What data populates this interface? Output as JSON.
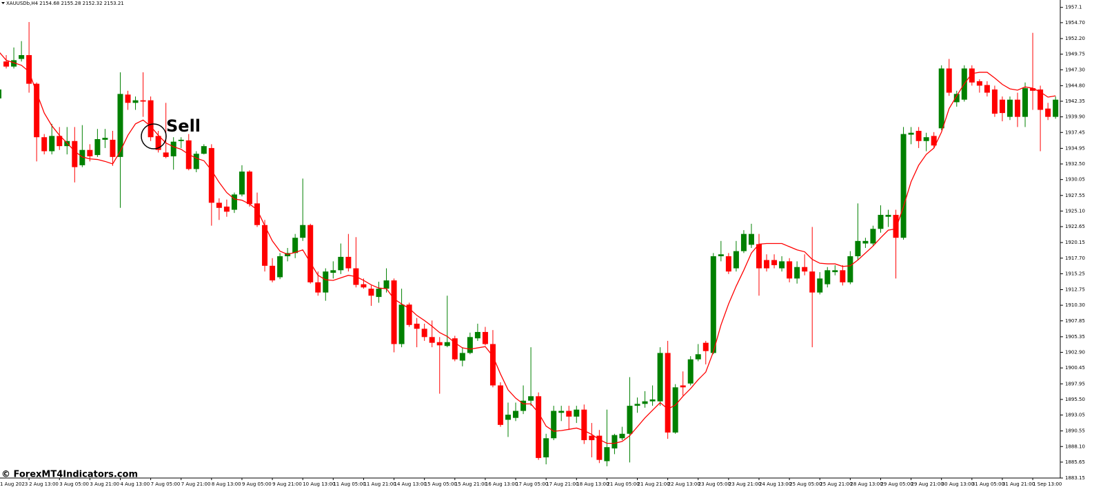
{
  "chart_data": {
    "type": "candlestick",
    "header": "XAUUSDb,H4  2154.68 2155.28 2152.32 2153.21",
    "annotation": "Sell",
    "watermark": "© ForexMT4Indicators.com",
    "up_color": "#008000",
    "down_color": "#ff0000",
    "categories": [
      "1 Aug 2023",
      null,
      null,
      null,
      "2 Aug 13:00",
      null,
      null,
      null,
      "3 Aug 05:00",
      null,
      null,
      null,
      "3 Aug 21:00",
      null,
      null,
      null,
      "4 Aug 13:00",
      null,
      null,
      null,
      "7 Aug 05:00",
      null,
      null,
      null,
      "7 Aug 21:00",
      null,
      null,
      null,
      "8 Aug 13:00",
      null,
      null,
      null,
      "9 Aug 05:00",
      null,
      null,
      null,
      "9 Aug 21:00",
      null,
      null,
      null,
      "10 Aug 13:00",
      null,
      null,
      null,
      "11 Aug 05:00",
      null,
      null,
      null,
      "11 Aug 21:00",
      null,
      null,
      null,
      "14 Aug 13:00",
      null,
      null,
      null,
      "15 Aug 05:00",
      null,
      null,
      null,
      "15 Aug 21:00",
      null,
      null,
      null,
      "16 Aug 13:00",
      null,
      null,
      null,
      "17 Aug 05:00",
      null,
      null,
      null,
      "17 Aug 21:00",
      null,
      null,
      null,
      "18 Aug 13:00",
      null,
      null,
      null,
      "21 Aug 05:00",
      null,
      null,
      null,
      "21 Aug 21:00",
      null,
      null,
      null,
      "22 Aug 13:00",
      null,
      null,
      null,
      "23 Aug 05:00",
      null,
      null,
      null,
      "23 Aug 21:00",
      null,
      null,
      null,
      "24 Aug 13:00",
      null,
      null,
      null,
      "25 Aug 05:00",
      null,
      null,
      null,
      "25 Aug 21:00",
      null,
      null,
      null,
      "28 Aug 13:00",
      null,
      null,
      null,
      "29 Aug 05:00",
      null,
      null,
      null,
      "29 Aug 21:00",
      null,
      null,
      null,
      "30 Aug 13:00",
      null,
      null,
      null,
      "31 Aug 05:00",
      null,
      null,
      null,
      "31 Aug 21:00",
      null,
      null,
      null,
      "1 Sep 13:00",
      null,
      null,
      null
    ],
    "open": [
      1942.8,
      1948.6,
      1947.8,
      1949.0,
      1949.6,
      1945.1,
      1936.7,
      1934.5,
      1936.9,
      1935.3,
      1936.1,
      1932.3,
      1934.7,
      1933.9,
      1936.3,
      1936.3,
      1933.6,
      1943.4,
      1942.1,
      1942.5,
      1942.5,
      1936.9,
      1934.3,
      1933.7,
      1936.1,
      1936.2,
      1931.7,
      1934.1,
      1935.0,
      1926.4,
      1925.8,
      1925.3,
      1927.7,
      1931.3,
      1926.3,
      1922.9,
      1916.5,
      1914.7,
      1918.0,
      1918.5,
      1920.9,
      1922.9,
      1913.9,
      1912.3,
      1915.4,
      1915.8,
      1917.9,
      1916.1,
      1913.6,
      1912.9,
      1911.6,
      1912.9,
      1914.2,
      1904.2,
      1910.4,
      1907.4,
      1906.6,
      1905.3,
      1904.5,
      1903.9,
      1905.1,
      1901.6,
      1902.8,
      1905.1,
      1906.1,
      1904.2,
      1897.7,
      1892.3,
      1892.6,
      1893.7,
      1895.3,
      1896.0,
      1886.4,
      1889.4,
      1893.4,
      1893.7,
      1892.8,
      1893.9,
      1889.8,
      1889.8,
      1885.8,
      1887.8,
      1889.4,
      1890.1,
      1894.5,
      1894.8,
      1895.2,
      1895.2,
      1902.8,
      1890.3,
      1897.7,
      1898.0,
      1901.8,
      1904.4,
      1902.8,
      1918.0,
      1918.0,
      1916.1,
      1918.8,
      1919.8,
      1919.9,
      1917.4,
      1917.4,
      1916.1,
      1917.2,
      1914.5,
      1916.3,
      1915.6,
      1912.3,
      1913.6,
      1915.5,
      1915.8,
      1913.9,
      1918.0,
      1920.0,
      1920.0,
      1922.3,
      1924.2,
      1924.5,
      1920.9,
      1937.1,
      1937.7,
      1936.1,
      1936.9,
      1938.1,
      1947.5,
      1942.2,
      1942.6,
      1947.5,
      1945.5,
      1944.9,
      1944.2,
      1942.6,
      1939.9,
      1942.6,
      1939.9,
      1944.4,
      1944.2,
      1941.2,
      1939.9
    ],
    "high": [
      1944.4,
      1949.6,
      1950.8,
      1951.8,
      1954.8,
      1945.3,
      1937.2,
      1938.8,
      1938.3,
      1938.3,
      1938.3,
      1938.6,
      1935.6,
      1938.0,
      1938.0,
      1937.7,
      1946.9,
      1944.0,
      1943.1,
      1946.9,
      1943.1,
      1937.7,
      1942.1,
      1936.7,
      1936.7,
      1937.2,
      1934.5,
      1935.6,
      1935.6,
      1927.1,
      1926.9,
      1928.0,
      1932.3,
      1931.5,
      1928.0,
      1923.7,
      1917.7,
      1918.5,
      1919.3,
      1921.5,
      1930.2,
      1923.1,
      1915.6,
      1916.1,
      1917.2,
      1920.0,
      1921.5,
      1921.0,
      1914.5,
      1913.4,
      1914.0,
      1916.1,
      1914.5,
      1912.9,
      1910.7,
      1908.3,
      1907.4,
      1907.9,
      1905.3,
      1911.8,
      1905.5,
      1903.7,
      1906.0,
      1907.4,
      1906.9,
      1906.4,
      1898.2,
      1895.0,
      1895.0,
      1897.7,
      1903.7,
      1896.6,
      1890.1,
      1894.5,
      1894.5,
      1894.5,
      1894.5,
      1894.7,
      1891.8,
      1890.7,
      1893.9,
      1890.1,
      1891.2,
      1899.0,
      1895.8,
      1896.8,
      1897.7,
      1903.7,
      1904.7,
      1897.9,
      1899.9,
      1902.3,
      1904.2,
      1904.7,
      1918.5,
      1920.4,
      1918.5,
      1920.4,
      1922.1,
      1923.1,
      1921.5,
      1918.3,
      1918.3,
      1918.0,
      1917.7,
      1917.2,
      1918.3,
      1922.6,
      1915.5,
      1916.3,
      1916.6,
      1916.6,
      1918.8,
      1926.3,
      1920.9,
      1922.8,
      1926.0,
      1925.3,
      1925.3,
      1938.3,
      1938.3,
      1938.3,
      1937.4,
      1937.5,
      1948.0,
      1949.0,
      1944.0,
      1948.0,
      1948.0,
      1945.8,
      1945.5,
      1944.8,
      1943.1,
      1943.1,
      1943.7,
      1945.3,
      1953.1,
      1944.8,
      1942.1,
      1943.1
    ],
    "low": [
      1942.6,
      1947.5,
      1947.5,
      1948.6,
      1943.7,
      1932.9,
      1934.0,
      1934.0,
      1934.7,
      1934.0,
      1929.6,
      1932.0,
      1932.9,
      1933.6,
      1935.0,
      1932.2,
      1925.6,
      1941.0,
      1941.0,
      1939.9,
      1936.1,
      1934.3,
      1933.4,
      1931.6,
      1935.0,
      1931.5,
      1931.2,
      1934.0,
      1922.8,
      1923.7,
      1924.2,
      1924.8,
      1927.4,
      1925.8,
      1922.6,
      1915.6,
      1913.9,
      1914.4,
      1917.2,
      1917.7,
      1920.4,
      1913.7,
      1911.8,
      1911.0,
      1914.5,
      1915.2,
      1915.6,
      1913.1,
      1912.9,
      1910.2,
      1910.7,
      1912.3,
      1902.9,
      1903.7,
      1906.9,
      1903.7,
      1904.7,
      1903.7,
      1896.4,
      1903.7,
      1901.5,
      1900.7,
      1902.6,
      1904.7,
      1904.0,
      1897.4,
      1891.2,
      1889.6,
      1892.1,
      1893.2,
      1894.5,
      1886.0,
      1885.3,
      1889.1,
      1892.1,
      1890.7,
      1891.8,
      1888.5,
      1886.4,
      1885.5,
      1885.0,
      1886.9,
      1889.1,
      1885.6,
      1893.4,
      1894.2,
      1894.5,
      1894.5,
      1889.3,
      1890.1,
      1896.1,
      1897.7,
      1901.5,
      1901.0,
      1902.6,
      1917.2,
      1915.2,
      1915.6,
      1918.5,
      1919.3,
      1911.8,
      1915.6,
      1916.1,
      1915.6,
      1913.9,
      1913.7,
      1915.0,
      1903.7,
      1912.0,
      1913.1,
      1915.0,
      1913.4,
      1913.6,
      1917.4,
      1919.3,
      1919.7,
      1921.7,
      1922.6,
      1914.5,
      1920.6,
      1935.6,
      1935.0,
      1934.5,
      1935.0,
      1937.8,
      1943.2,
      1941.5,
      1942.3,
      1944.8,
      1943.7,
      1943.1,
      1939.9,
      1939.2,
      1939.4,
      1938.3,
      1938.3,
      1941.0,
      1934.5,
      1939.4,
      1939.6
    ],
    "close": [
      1944.2,
      1947.8,
      1948.8,
      1949.6,
      1945.1,
      1936.7,
      1934.5,
      1936.9,
      1935.3,
      1936.1,
      1932.0,
      1934.7,
      1933.7,
      1936.4,
      1936.6,
      1933.6,
      1943.5,
      1942.1,
      1942.5,
      1942.3,
      1936.7,
      1934.7,
      1933.6,
      1936.0,
      1936.3,
      1931.7,
      1934.1,
      1935.3,
      1926.4,
      1925.6,
      1925.0,
      1927.7,
      1931.3,
      1926.2,
      1922.9,
      1916.5,
      1914.2,
      1918.0,
      1918.5,
      1920.9,
      1922.9,
      1913.9,
      1912.3,
      1915.6,
      1915.8,
      1917.9,
      1916.1,
      1913.5,
      1913.1,
      1911.8,
      1912.9,
      1914.2,
      1904.2,
      1910.4,
      1907.2,
      1906.6,
      1905.3,
      1904.4,
      1904.0,
      1904.5,
      1901.8,
      1902.8,
      1905.3,
      1906.1,
      1904.2,
      1897.7,
      1891.5,
      1893.1,
      1893.7,
      1895.3,
      1896.0,
      1886.3,
      1889.4,
      1893.7,
      1893.7,
      1892.8,
      1893.9,
      1889.1,
      1889.1,
      1886.0,
      1888.0,
      1889.9,
      1890.1,
      1894.5,
      1894.8,
      1895.2,
      1895.5,
      1902.8,
      1890.3,
      1897.4,
      1897.4,
      1901.8,
      1902.6,
      1903.1,
      1918.0,
      1918.3,
      1915.6,
      1918.8,
      1921.5,
      1921.5,
      1916.1,
      1916.1,
      1916.6,
      1917.2,
      1914.5,
      1916.3,
      1915.6,
      1912.3,
      1914.5,
      1915.8,
      1915.8,
      1913.9,
      1918.0,
      1920.4,
      1920.4,
      1922.3,
      1924.5,
      1924.5,
      1920.9,
      1937.2,
      1937.4,
      1936.1,
      1936.7,
      1935.4,
      1947.5,
      1943.7,
      1943.5,
      1947.5,
      1945.3,
      1944.8,
      1943.7,
      1940.4,
      1940.5,
      1942.6,
      1939.9,
      1944.4,
      1944.0,
      1941.0,
      1939.9,
      1942.6
    ],
    "line_series": [
      {
        "color": "#ff0000",
        "values": [
          1950.2,
          1948.8,
          1948.4,
          1948.0,
          1947.0,
          1943.7,
          1940.5,
          1938.5,
          1937.0,
          1935.8,
          1934.5,
          1933.6,
          1933.3,
          1933.2,
          1932.9,
          1932.5,
          1934.5,
          1937.0,
          1938.8,
          1939.4,
          1938.4,
          1937.0,
          1935.8,
          1935.2,
          1934.8,
          1934.0,
          1933.4,
          1933.0,
          1931.5,
          1929.6,
          1928.0,
          1927.0,
          1926.8,
          1926.2,
          1925.3,
          1922.8,
          1920.4,
          1918.8,
          1918.3,
          1918.6,
          1919.0,
          1917.0,
          1915.0,
          1914.3,
          1914.2,
          1914.6,
          1915.0,
          1914.8,
          1914.2,
          1913.5,
          1913.0,
          1912.9,
          1911.3,
          1910.5,
          1909.8,
          1908.7,
          1907.9,
          1907.0,
          1906.0,
          1905.4,
          1904.4,
          1903.6,
          1903.4,
          1903.6,
          1903.8,
          1902.3,
          1899.5,
          1897.0,
          1895.7,
          1894.8,
          1894.8,
          1893.4,
          1891.3,
          1890.5,
          1890.6,
          1890.8,
          1891.0,
          1890.6,
          1890.0,
          1889.2,
          1888.6,
          1888.6,
          1888.9,
          1889.8,
          1891.2,
          1892.6,
          1893.8,
          1895.0,
          1894.0,
          1894.6,
          1896.0,
          1897.2,
          1898.6,
          1899.8,
          1903.0,
          1907.2,
          1910.5,
          1913.3,
          1915.8,
          1918.5,
          1919.9,
          1920.0,
          1920.0,
          1920.0,
          1919.5,
          1919.0,
          1918.7,
          1917.5,
          1916.9,
          1916.8,
          1916.8,
          1916.4,
          1916.5,
          1917.4,
          1918.5,
          1919.6,
          1920.9,
          1922.1,
          1922.3,
          1925.8,
          1929.7,
          1932.3,
          1934.0,
          1935.0,
          1937.5,
          1941.2,
          1943.2,
          1945.1,
          1946.7,
          1946.9,
          1946.9,
          1946.0,
          1945.0,
          1944.3,
          1944.1,
          1944.6,
          1944.4,
          1943.8,
          1943.0,
          1943.2
        ]
      }
    ],
    "ylim": [
      1883.15,
      1958.26
    ],
    "yticks": [
      1957.1,
      {
        "value": 1954.7,
        "label": "1954.70"
      },
      {
        "value": 1952.2,
        "label": "1952.20"
      },
      1949.75,
      {
        "value": 1947.3,
        "label": "1947.30"
      },
      {
        "value": 1944.8,
        "label": "1944.80"
      },
      1942.35,
      {
        "value": 1939.9,
        "label": "1939.90"
      },
      1937.45,
      1934.95,
      {
        "value": 1932.5,
        "label": "1932.50"
      },
      1930.05,
      1927.55,
      {
        "value": 1925.1,
        "label": "1925.10"
      },
      1922.65,
      1920.15,
      {
        "value": 1917.7,
        "label": "1917.70"
      },
      1915.25,
      1912.75,
      {
        "value": 1910.3,
        "label": "1910.30"
      },
      1907.85,
      1905.35,
      {
        "value": 1902.9,
        "label": "1902.90"
      },
      1900.45,
      1897.95,
      {
        "value": 1895.5,
        "label": "1895.50"
      },
      1893.05,
      1890.55,
      {
        "value": 1888.1,
        "label": "1888.10"
      },
      1885.65,
      1883.15
    ],
    "grid": false
  }
}
